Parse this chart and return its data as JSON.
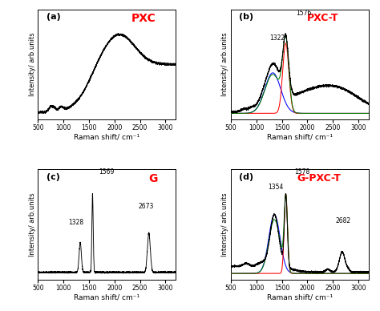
{
  "title_a": "PXC",
  "title_b": "PXC-T",
  "title_c": "G",
  "title_d": "G-PXC-T",
  "label_a": "(a)",
  "label_b": "(b)",
  "label_c": "(c)",
  "label_d": "(d)",
  "xlabel": "Raman shift/ cm⁻¹",
  "ylabel": "Intensity/ arb.units",
  "title_color": "#ff0000",
  "xmin": 500,
  "xmax": 3200,
  "background_color": "#ffffff",
  "tick_positions": [
    500,
    1000,
    1500,
    2000,
    2500,
    3000
  ]
}
